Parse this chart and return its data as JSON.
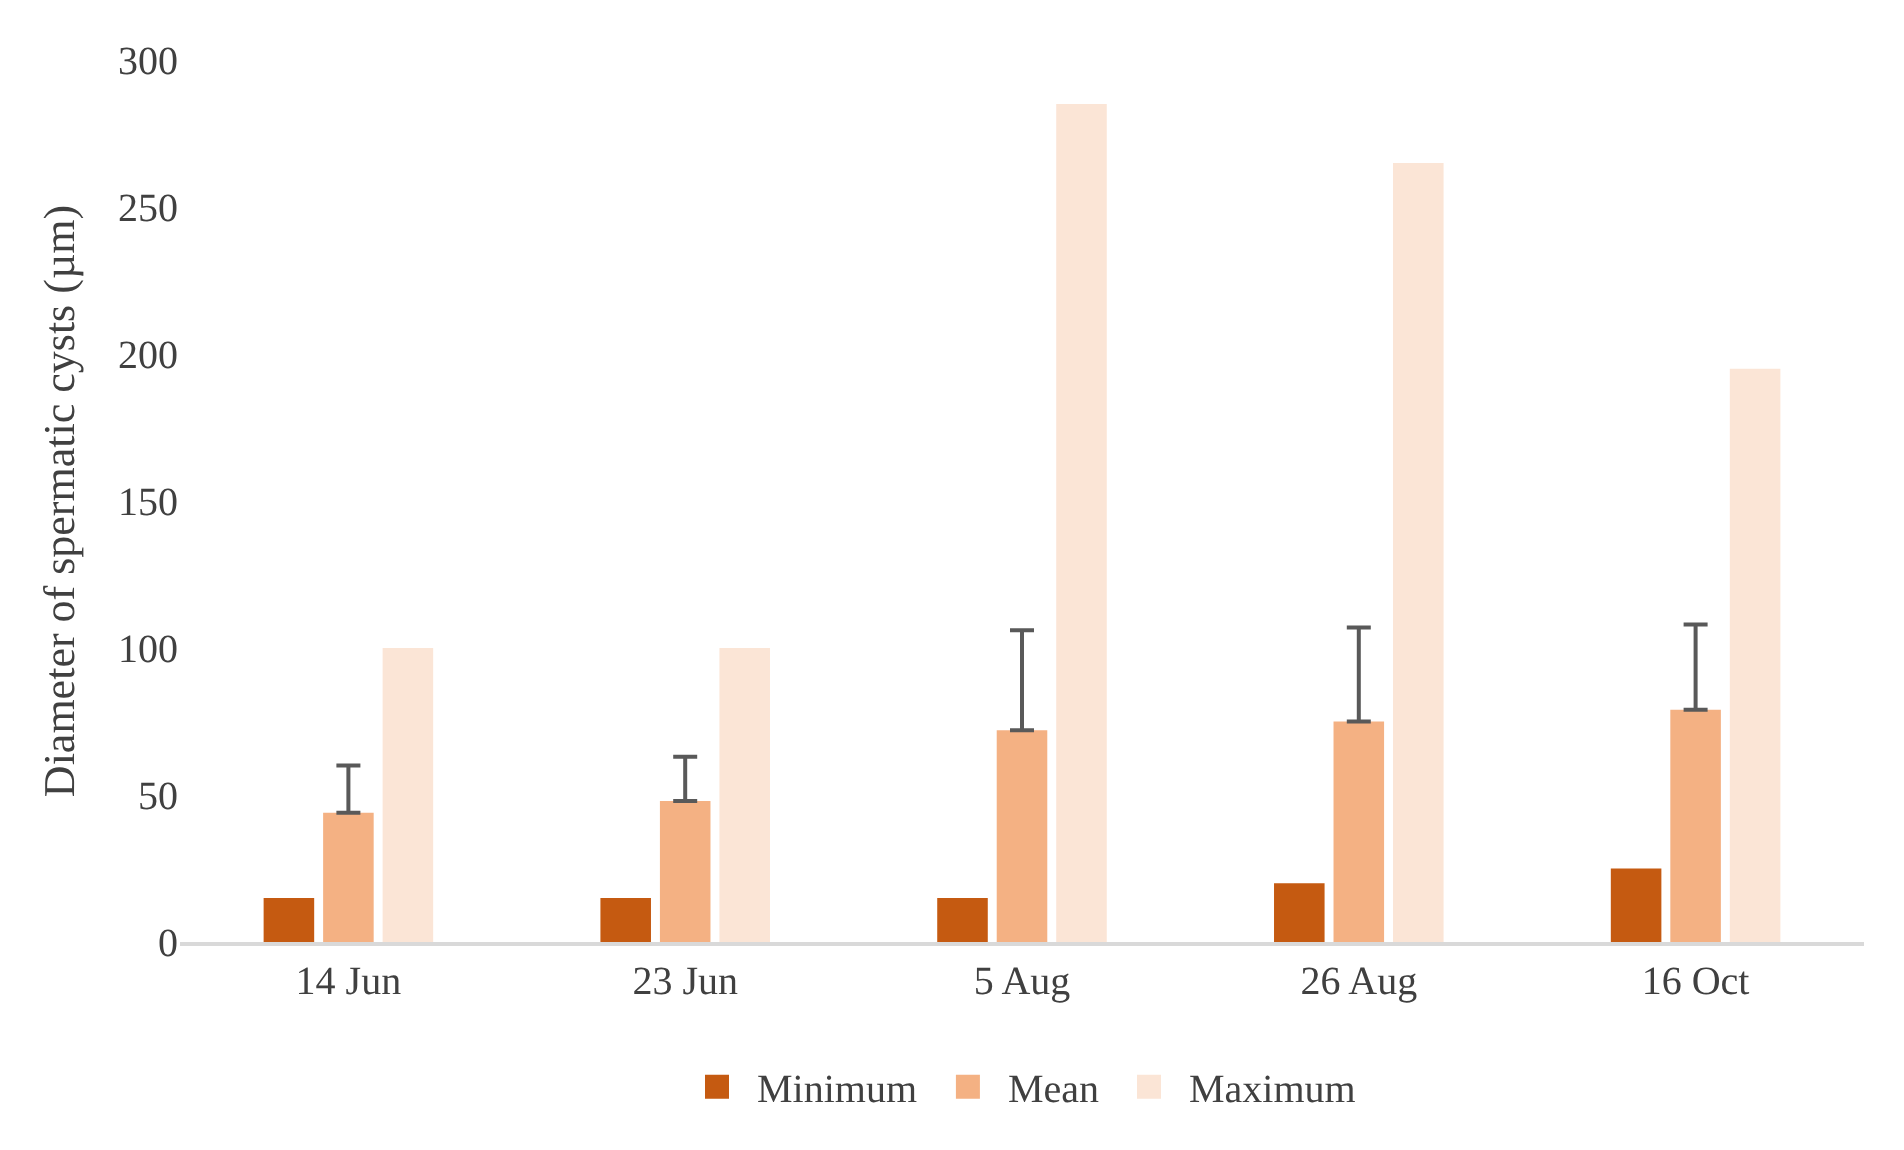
{
  "chart_data": {
    "type": "bar",
    "ylabel": "Diameter of spermatic cysts (µm)",
    "categories": [
      "14 Jun",
      "23 Jun",
      "5 Aug",
      "26 Aug",
      "16 Oct"
    ],
    "series": [
      {
        "name": "Minimum",
        "color": "#c55a11",
        "values": [
          15,
          15,
          15,
          20,
          25
        ]
      },
      {
        "name": "Mean",
        "color": "#f4b183",
        "values": [
          44,
          48,
          72,
          75,
          79
        ],
        "errors": [
          [
            44,
            60
          ],
          [
            48,
            63
          ],
          [
            72,
            106
          ],
          [
            75,
            107
          ],
          [
            79,
            108
          ]
        ]
      },
      {
        "name": "Maximum",
        "color": "#fbe5d6",
        "values": [
          100,
          100,
          285,
          265,
          195
        ]
      }
    ],
    "ylim": [
      0,
      300
    ],
    "yticks": [
      0,
      50,
      100,
      150,
      200,
      250,
      300
    ],
    "grid": false,
    "legend": "bottom"
  }
}
